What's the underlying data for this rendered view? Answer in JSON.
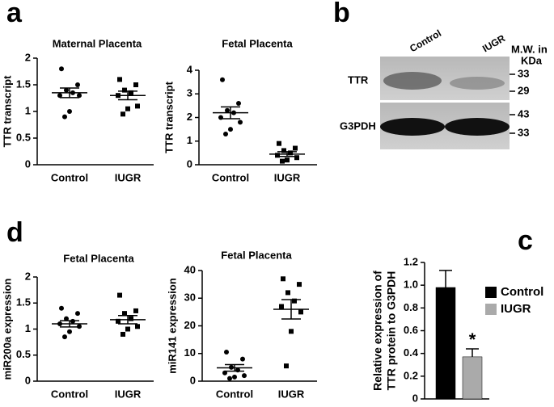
{
  "panel_labels": [
    "a",
    "b",
    "c",
    "d"
  ],
  "blot": {
    "lanes": [
      "Control",
      "IUGR"
    ],
    "mw_label": [
      "M.W. in",
      "KDa"
    ],
    "rows": [
      {
        "name": "TTR",
        "markers": [
          33,
          29
        ]
      },
      {
        "name": "G3PDH",
        "markers": [
          43,
          33
        ]
      }
    ]
  },
  "chart_data": [
    {
      "type": "dot",
      "title": "Maternal Placenta",
      "y_label": "TTR transcript",
      "categories": [
        "Control",
        "IUGR"
      ],
      "ylim": [
        0,
        2
      ],
      "yticks": [
        0,
        0.5,
        1,
        1.5,
        2
      ],
      "groups": [
        {
          "values": [
            1.8,
            1.5,
            1.4,
            1.35,
            1.3,
            1.3,
            1.0,
            0.9
          ],
          "mean": 1.35,
          "sem": 0.09,
          "marker": "circle"
        },
        {
          "values": [
            1.6,
            1.5,
            1.4,
            1.35,
            1.3,
            1.1,
            1.05,
            0.95
          ],
          "mean": 1.3,
          "sem": 0.08,
          "marker": "square"
        }
      ]
    },
    {
      "type": "dot",
      "title": "Fetal Placenta",
      "y_label": "TTR transcript",
      "categories": [
        "Control",
        "IUGR"
      ],
      "ylim": [
        0,
        4
      ],
      "yticks": [
        0,
        1,
        2,
        3,
        4
      ],
      "groups": [
        {
          "values": [
            3.6,
            2.6,
            2.3,
            2.2,
            2.0,
            1.8,
            1.5,
            1.3
          ],
          "mean": 2.2,
          "sem": 0.25,
          "marker": "circle"
        },
        {
          "values": [
            0.9,
            0.7,
            0.6,
            0.5,
            0.4,
            0.3,
            0.2,
            0.15
          ],
          "mean": 0.45,
          "sem": 0.1,
          "marker": "square"
        }
      ]
    },
    {
      "type": "dot",
      "title": "Fetal Placenta",
      "y_label": "miR200a expression",
      "categories": [
        "Control",
        "IUGR"
      ],
      "ylim": [
        0,
        2
      ],
      "yticks": [
        0,
        0.5,
        1,
        1.5,
        2
      ],
      "groups": [
        {
          "values": [
            1.4,
            1.3,
            1.2,
            1.15,
            1.1,
            1.05,
            0.95,
            0.85
          ],
          "mean": 1.1,
          "sem": 0.06,
          "marker": "circle"
        },
        {
          "values": [
            1.65,
            1.35,
            1.3,
            1.2,
            1.15,
            1.05,
            1.0,
            0.9
          ],
          "mean": 1.18,
          "sem": 0.08,
          "marker": "square"
        }
      ]
    },
    {
      "type": "dot",
      "title": "Fetal Placenta",
      "y_label": "miR141 expression",
      "categories": [
        "Control",
        "IUGR"
      ],
      "ylim": [
        0,
        40
      ],
      "yticks": [
        0,
        10,
        20,
        30,
        40
      ],
      "groups": [
        {
          "values": [
            10.5,
            8,
            5,
            4,
            3,
            2,
            1.5,
            1
          ],
          "mean": 4.8,
          "sem": 1.2,
          "marker": "circle"
        },
        {
          "values": [
            37,
            35,
            32,
            29,
            27,
            25,
            18,
            5.5
          ],
          "mean": 26,
          "sem": 3.5,
          "marker": "square"
        }
      ]
    },
    {
      "type": "bar",
      "y_label": [
        "Relative expression of",
        "TTR protein to G3PDH"
      ],
      "ylim": [
        0,
        1.2
      ],
      "yticks": [
        0,
        0.2,
        0.4,
        0.6,
        0.8,
        {
          "value": 1,
          "label": "1.0"
        },
        1.2
      ],
      "series": [
        {
          "name": "Control",
          "color": "#000000",
          "values": [
            0.98
          ],
          "errors": [
            0.15
          ]
        },
        {
          "name": "IUGR",
          "color": "#aaaaaa",
          "values": [
            0.37
          ],
          "errors": [
            0.07
          ]
        }
      ],
      "annotation": "*"
    }
  ]
}
